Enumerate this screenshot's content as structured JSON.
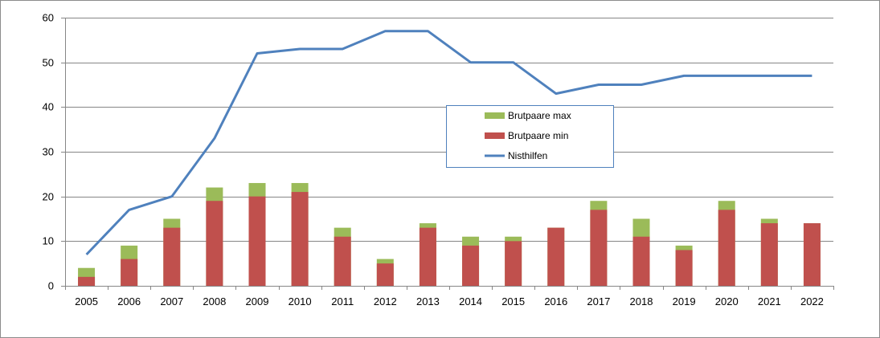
{
  "chart_data": {
    "type": "bar",
    "categories": [
      "2005",
      "2006",
      "2007",
      "2008",
      "2009",
      "2010",
      "2011",
      "2012",
      "2013",
      "2014",
      "2015",
      "2016",
      "2017",
      "2018",
      "2019",
      "2020",
      "2021",
      "2022"
    ],
    "series": [
      {
        "name": "Brutpaare min",
        "kind": "bar",
        "color": "#c0504d",
        "values": [
          2,
          6,
          13,
          19,
          20,
          21,
          11,
          5,
          13,
          9,
          10,
          13,
          17,
          11,
          8,
          17,
          14,
          14
        ]
      },
      {
        "name": "Brutpaare max",
        "kind": "bar-stacked",
        "color": "#9bbb59",
        "values": [
          4,
          9,
          15,
          22,
          23,
          23,
          13,
          6,
          14,
          11,
          11,
          13,
          19,
          15,
          9,
          19,
          15,
          14
        ]
      },
      {
        "name": "Nisthilfen",
        "kind": "line",
        "color": "#4f81bd",
        "values": [
          7,
          17,
          20,
          33,
          52,
          53,
          53,
          57,
          57,
          50,
          50,
          43,
          45,
          45,
          47,
          47,
          47,
          47
        ]
      }
    ],
    "yticks": [
      "0",
      "10",
      "20",
      "30",
      "40",
      "50",
      "60"
    ],
    "ylim": [
      0,
      60
    ],
    "grid": true,
    "legend": {
      "placement": "center-right",
      "entries": [
        "Brutpaare max",
        "Brutpaare min",
        "Nisthilfen"
      ]
    }
  }
}
